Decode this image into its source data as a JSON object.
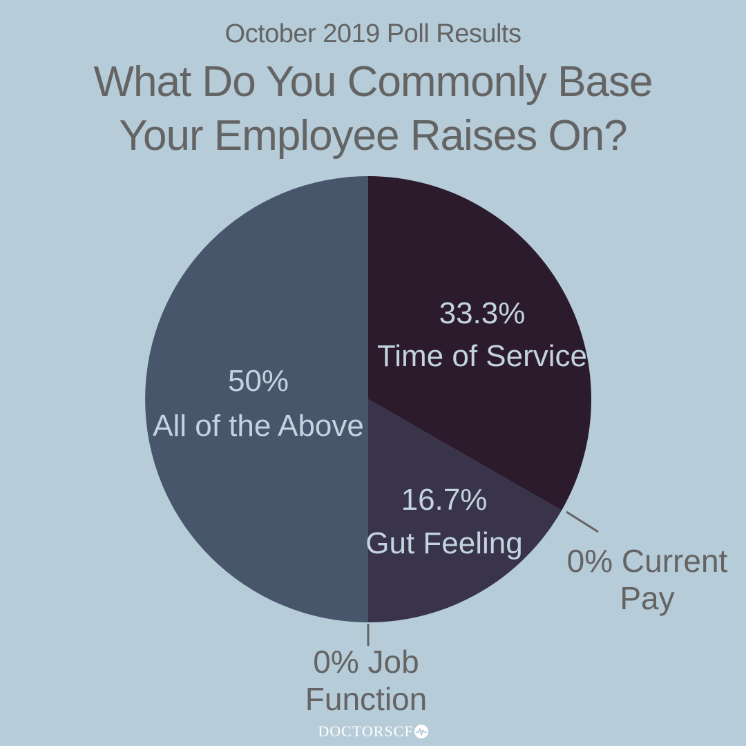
{
  "header": {
    "subtitle": "October 2019 Poll Results",
    "title_line1": "What Do You Commonly Base",
    "title_line2": "Your Employee Raises On?"
  },
  "colors": {
    "background": "#b6ccd8",
    "heading_text": "#646464",
    "slice_label_text": "#c3d4e0",
    "leader_line": "#646464"
  },
  "chart_data": {
    "type": "pie",
    "start": "12 o'clock, clockwise",
    "slices": [
      {
        "label": "Time of Service",
        "value": 33.3,
        "value_label": "33.3%",
        "color": "#2c1b2c",
        "label_position": "inside"
      },
      {
        "label": "Current Pay",
        "value": 0,
        "value_label": "0%",
        "color": "#2c1b2c",
        "label_position": "outside",
        "label_lines": [
          "0% Current",
          "Pay"
        ]
      },
      {
        "label": "Gut Feeling",
        "value": 16.7,
        "value_label": "16.7%",
        "color": "#39344a",
        "label_position": "inside"
      },
      {
        "label": "Job Function",
        "value": 0,
        "value_label": "0%",
        "color": "#39344a",
        "label_position": "outside",
        "label_lines": [
          "0% Job",
          "Function"
        ]
      },
      {
        "label": "All of the Above",
        "value": 50,
        "value_label": "50%",
        "color": "#47566b",
        "label_position": "inside"
      }
    ]
  },
  "footer": {
    "brand_text": "DOCTORSCF",
    "brand_icon": "heartbeat-icon"
  }
}
